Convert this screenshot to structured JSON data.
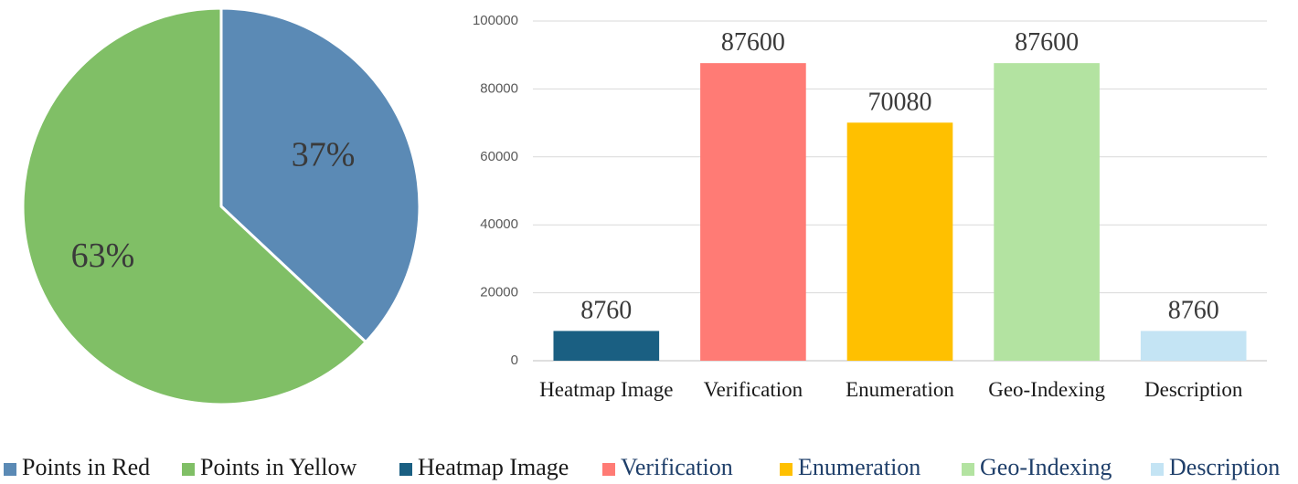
{
  "chart_data": [
    {
      "type": "pie",
      "slices": [
        {
          "label": "Points in Red",
          "value": 37,
          "display": "37%",
          "color": "#5b8ab5"
        },
        {
          "label": "Points in Yellow",
          "value": 63,
          "display": "63%",
          "color": "#80bf66"
        }
      ]
    },
    {
      "type": "bar",
      "categories": [
        "Heatmap Image",
        "Verification",
        "Enumeration",
        "Geo-Indexing",
        "Description"
      ],
      "values": [
        8760,
        87600,
        70080,
        87600,
        8760
      ],
      "value_labels": [
        "8760",
        "87600",
        "70080",
        "87600",
        "8760"
      ],
      "colors": [
        "#1a5f82",
        "#ff7b75",
        "#ffc000",
        "#b3e3a1",
        "#c4e4f4"
      ],
      "ylim": [
        0,
        100000
      ],
      "yticks": [
        0,
        20000,
        40000,
        60000,
        80000,
        100000
      ],
      "ytick_labels": [
        "0",
        "20000",
        "40000",
        "60000",
        "80000",
        "100000"
      ],
      "grid": true,
      "xlabel": "",
      "ylabel": ""
    }
  ],
  "legend": [
    {
      "label": "Points in Red",
      "color": "#5b8ab5"
    },
    {
      "label": "Points in Yellow",
      "color": "#80bf66"
    },
    {
      "label": "Heatmap Image",
      "color": "#1a5f82"
    },
    {
      "label": "Verification",
      "color": "#ff7b75"
    },
    {
      "label": "Enumeration",
      "color": "#ffc000"
    },
    {
      "label": "Geo-Indexing",
      "color": "#b3e3a1"
    },
    {
      "label": "Description",
      "color": "#c4e4f4"
    }
  ]
}
